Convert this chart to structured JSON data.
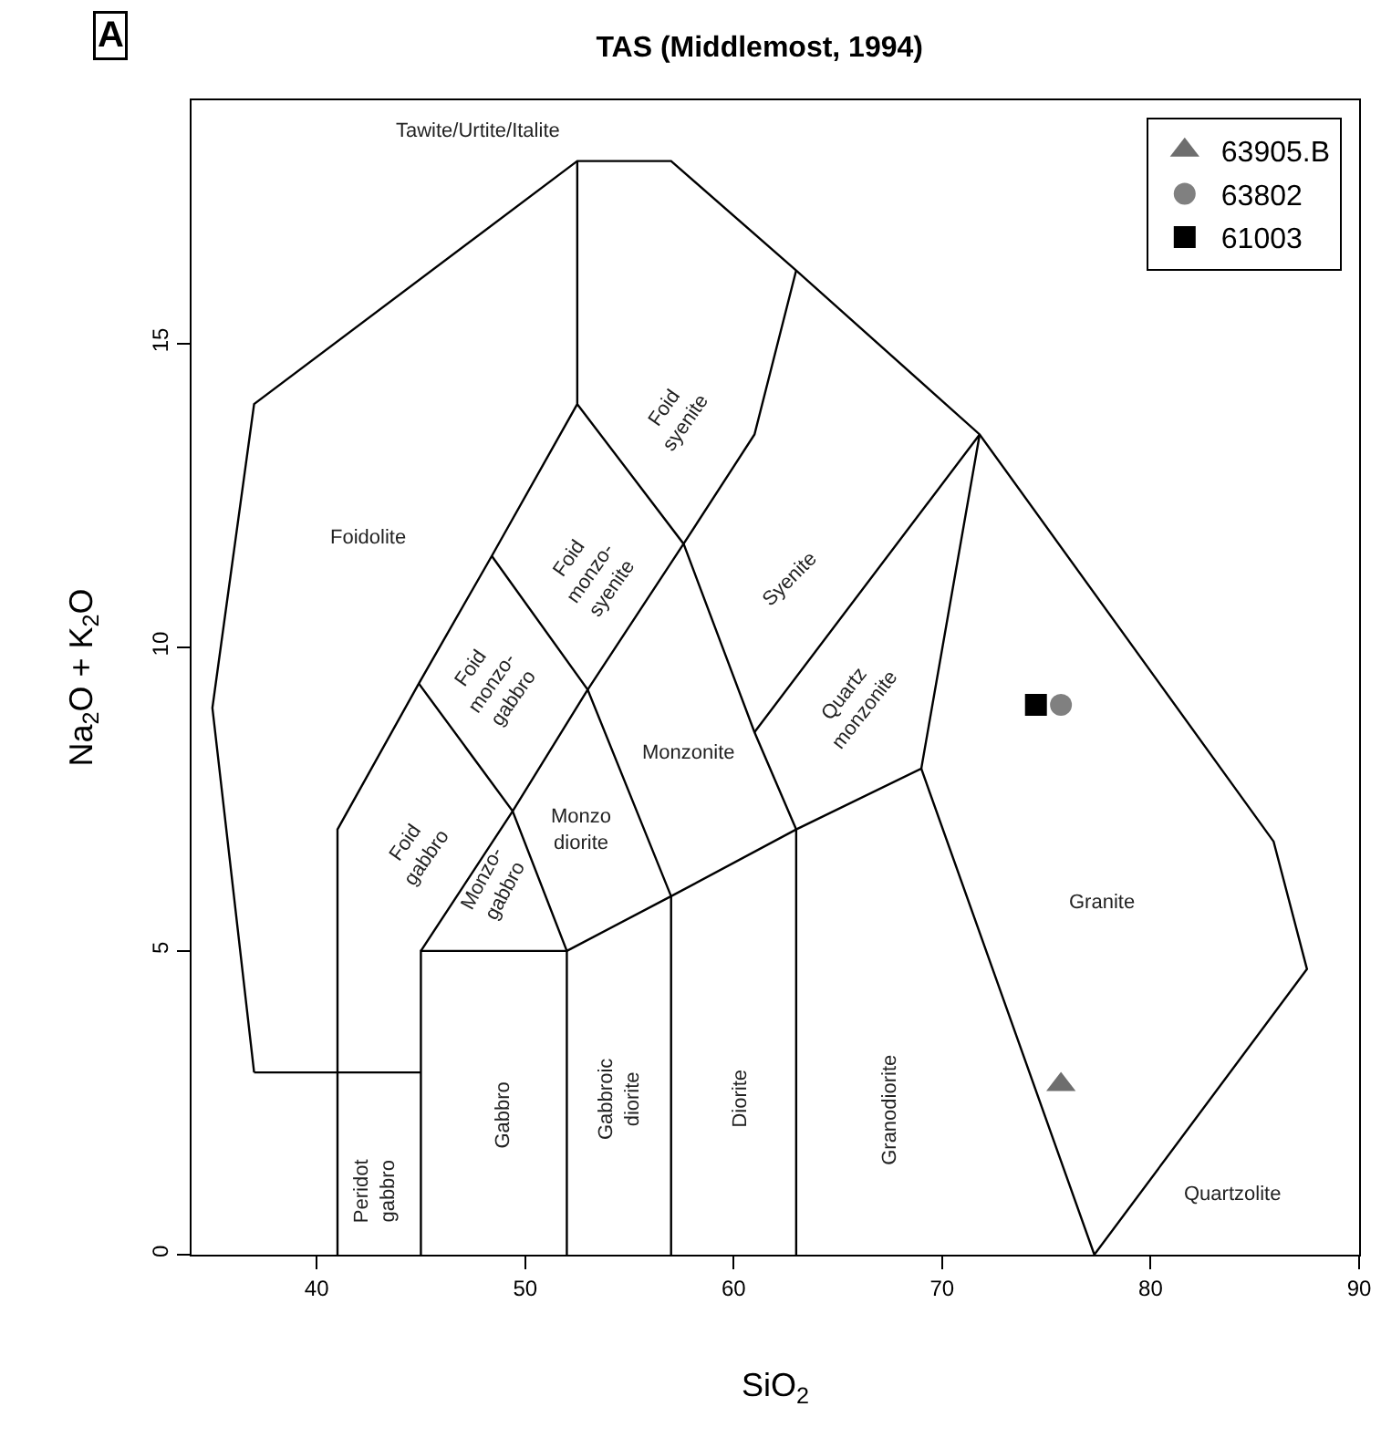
{
  "chart_data": {
    "type": "scatter",
    "title": "TAS (Middlemost, 1994)",
    "xlabel": "SiO$_{2}$",
    "ylabel": "Na$_{2}$O + K$_{2}$O",
    "xlim": [
      34,
      90
    ],
    "ylim": [
      0,
      19
    ],
    "xticks": [
      40,
      50,
      60,
      70,
      80,
      90
    ],
    "yticks": [
      0,
      5,
      10,
      15
    ],
    "legend": "top right",
    "series": [
      {
        "type": "line",
        "color": "#000000",
        "marker": "none",
        "x": [
          37,
          35,
          37,
          52.5,
          57,
          63,
          71.8,
          85.9,
          87.5,
          77.3
        ],
        "values": [
          3,
          9,
          14,
          18,
          18,
          16.2,
          13.5,
          6.8,
          4.7,
          0
        ]
      },
      {
        "type": "line",
        "color": "#000000",
        "marker": "none",
        "x": [
          37,
          45
        ],
        "values": [
          3,
          3
        ]
      },
      {
        "type": "line",
        "color": "#000000",
        "marker": "none",
        "x": [
          41,
          41,
          44.9,
          48.4,
          52.5,
          52.5
        ],
        "values": [
          0,
          7,
          9.4,
          11.5,
          14,
          18
        ]
      },
      {
        "type": "line",
        "color": "#000000",
        "marker": "none",
        "x": [
          45,
          45,
          52,
          52
        ],
        "values": [
          0,
          5,
          5,
          0
        ]
      },
      {
        "type": "line",
        "color": "#000000",
        "marker": "none",
        "x": [
          45,
          49.4,
          53,
          57.6,
          61,
          63
        ],
        "values": [
          5,
          7.3,
          9.3,
          11.7,
          13.5,
          16.2
        ]
      },
      {
        "type": "line",
        "color": "#000000",
        "marker": "none",
        "x": [
          44.9,
          49.4,
          52
        ],
        "values": [
          9.4,
          7.3,
          5
        ]
      },
      {
        "type": "line",
        "color": "#000000",
        "marker": "none",
        "x": [
          48.4,
          53,
          57,
          57
        ],
        "values": [
          11.5,
          9.3,
          5.9,
          0
        ]
      },
      {
        "type": "line",
        "color": "#000000",
        "marker": "none",
        "x": [
          52.5,
          57.6,
          61,
          63,
          63
        ],
        "values": [
          14,
          11.7,
          8.6,
          7,
          0
        ]
      },
      {
        "type": "line",
        "color": "#000000",
        "marker": "none",
        "x": [
          52,
          57,
          63,
          69,
          77.3
        ],
        "values": [
          5,
          5.9,
          7,
          8,
          0
        ]
      },
      {
        "type": "line",
        "color": "#000000",
        "marker": "none",
        "x": [
          61,
          71.8,
          69
        ],
        "values": [
          8.6,
          13.5,
          8
        ]
      },
      {
        "type": "scatter",
        "name": "63905.B",
        "color": "#6e6e6e",
        "marker": "triangle",
        "x": [
          75.7
        ],
        "values": [
          2.8
        ]
      },
      {
        "type": "scatter",
        "name": "63802",
        "color": "#808080",
        "marker": "circle",
        "x": [
          75.7
        ],
        "values": [
          9.05
        ]
      },
      {
        "type": "scatter",
        "name": "61003",
        "color": "#000000",
        "marker": "square",
        "x": [
          74.5
        ],
        "values": [
          9.05
        ]
      }
    ],
    "annotations": [
      "A",
      "Tawite/Urtite/Italite",
      "Foidolite",
      "Foid\nsyenite",
      "Foid\nmonzo-\nsyenite",
      "Foid\nmonzo-\ngabbro",
      "Syenite",
      "Quartz\nmonzonite",
      "Monzonite",
      "Monzo\ndiorite",
      "Foid\ngabbro",
      "Monzo-\ngabbro",
      "Granite",
      "Granodiorite",
      "Diorite",
      "Gabbroic\ndiorite",
      "Gabbro",
      "Peridot\ngabbro",
      "Quartzolite"
    ]
  }
}
